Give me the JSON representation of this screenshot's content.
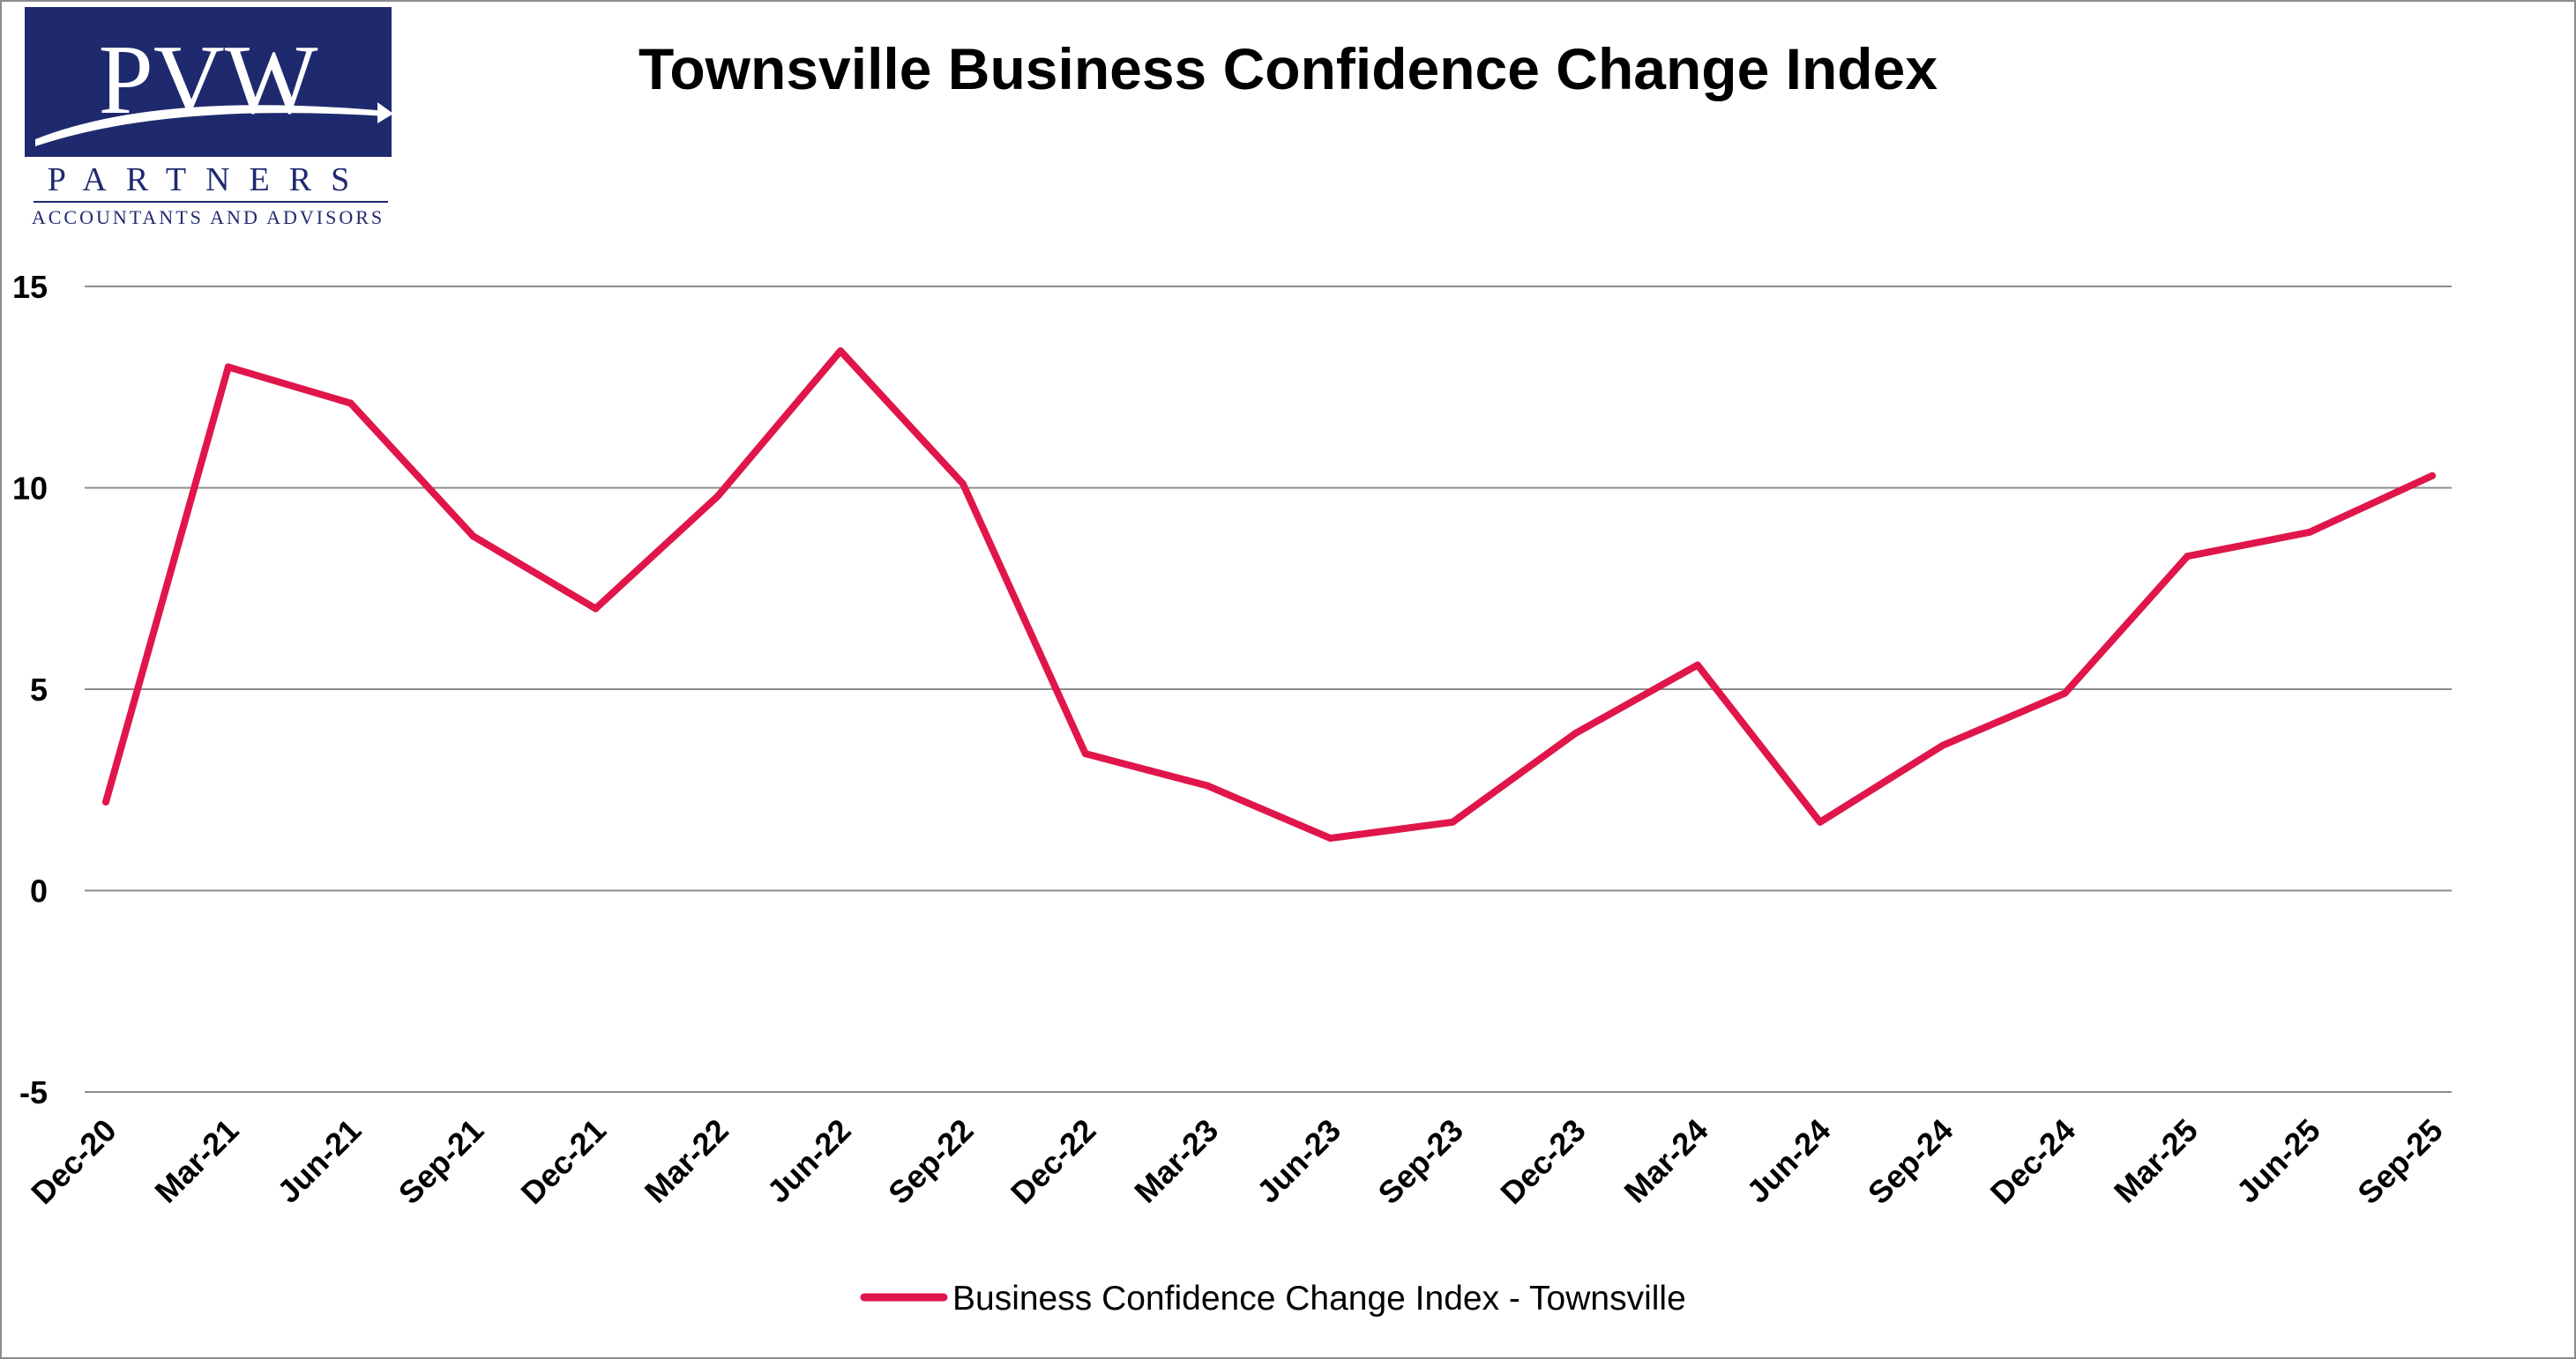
{
  "logo": {
    "mark": "PVW",
    "name": "PARTNERS",
    "tagline": "ACCOUNTANTS AND ADVISORS"
  },
  "colors": {
    "series": "#e0164b",
    "logo_navy": "#1f2a6e",
    "grid": "#8c8c8c"
  },
  "chart_data": {
    "type": "line",
    "title": "Townsville Business Confidence Change Index",
    "xlabel": "",
    "ylabel": "",
    "categories": [
      "Dec-20",
      "Mar-21",
      "Jun-21",
      "Sep-21",
      "Dec-21",
      "Mar-22",
      "Jun-22",
      "Sep-22",
      "Dec-22",
      "Mar-23",
      "Jun-23",
      "Sep-23",
      "Dec-23",
      "Mar-24",
      "Jun-24",
      "Sep-24",
      "Dec-24",
      "Mar-25",
      "Jun-25",
      "Sep-25"
    ],
    "series": [
      {
        "name": "Business Confidence Change Index - Townsville",
        "values": [
          2.2,
          13.0,
          12.1,
          8.8,
          7.0,
          9.8,
          13.4,
          10.1,
          3.4,
          2.6,
          1.3,
          1.7,
          3.9,
          5.6,
          1.7,
          3.6,
          4.9,
          8.3,
          8.9,
          10.3
        ]
      }
    ],
    "yticks": [
      15,
      10,
      5,
      0,
      -5
    ],
    "ylim": [
      -5,
      15
    ],
    "grid": true,
    "legend_position": "bottom"
  }
}
